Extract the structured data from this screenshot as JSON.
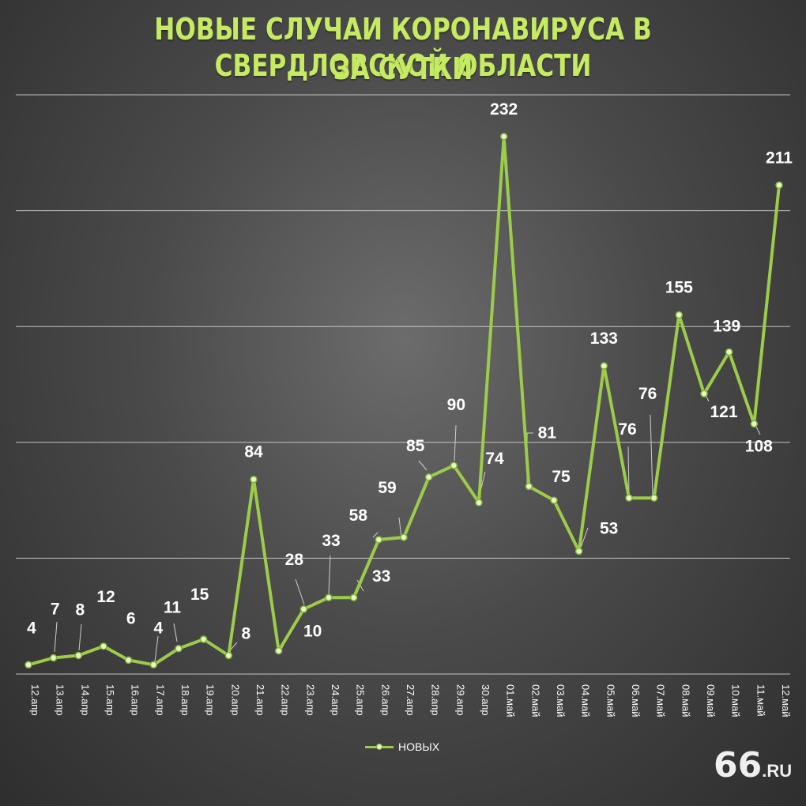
{
  "header": {
    "title_line1": "НОВЫЕ СЛУЧАИ КОРОНАВИРУСА В СВЕРДЛОВСКОЙ ОБЛАСТИ",
    "title_line2": "ЗА СУТКИ"
  },
  "logo": {
    "number": "66",
    "suffix": ".RU"
  },
  "colors": {
    "title": "#c6ea62",
    "series": "#9ccc4a",
    "marker": "#e8f5c0",
    "grid": "#d9d9d9"
  },
  "chart_data": {
    "type": "line",
    "title": "НОВЫЕ СЛУЧАИ КОРОНАВИРУСА В СВЕРДЛОВСКОЙ ОБЛАСТИ ЗА СУТКИ",
    "xlabel": "",
    "ylabel": "",
    "ylim": [
      0,
      250
    ],
    "grid": true,
    "legend_position": "bottom",
    "categories": [
      "12.апр",
      "13.апр",
      "14.апр",
      "15.апр",
      "16.апр",
      "17.апр",
      "18.апр",
      "19.апр",
      "20.апр",
      "21.апр",
      "22.апр",
      "23.апр",
      "24.апр",
      "25.апр",
      "26.апр",
      "27.апр",
      "28.апр",
      "29.апр",
      "30.апр",
      "01.май",
      "02.май",
      "03.май",
      "04.май",
      "05.май",
      "06.май",
      "07.май",
      "08.май",
      "09.май",
      "10.май",
      "11.май",
      "12.май"
    ],
    "series": [
      {
        "name": "НОВЫХ",
        "values": [
          4,
          7,
          8,
          12,
          6,
          4,
          11,
          15,
          8,
          84,
          10,
          28,
          33,
          33,
          58,
          59,
          85,
          90,
          74,
          232,
          81,
          75,
          53,
          133,
          76,
          76,
          155,
          121,
          139,
          108,
          211
        ]
      }
    ]
  }
}
